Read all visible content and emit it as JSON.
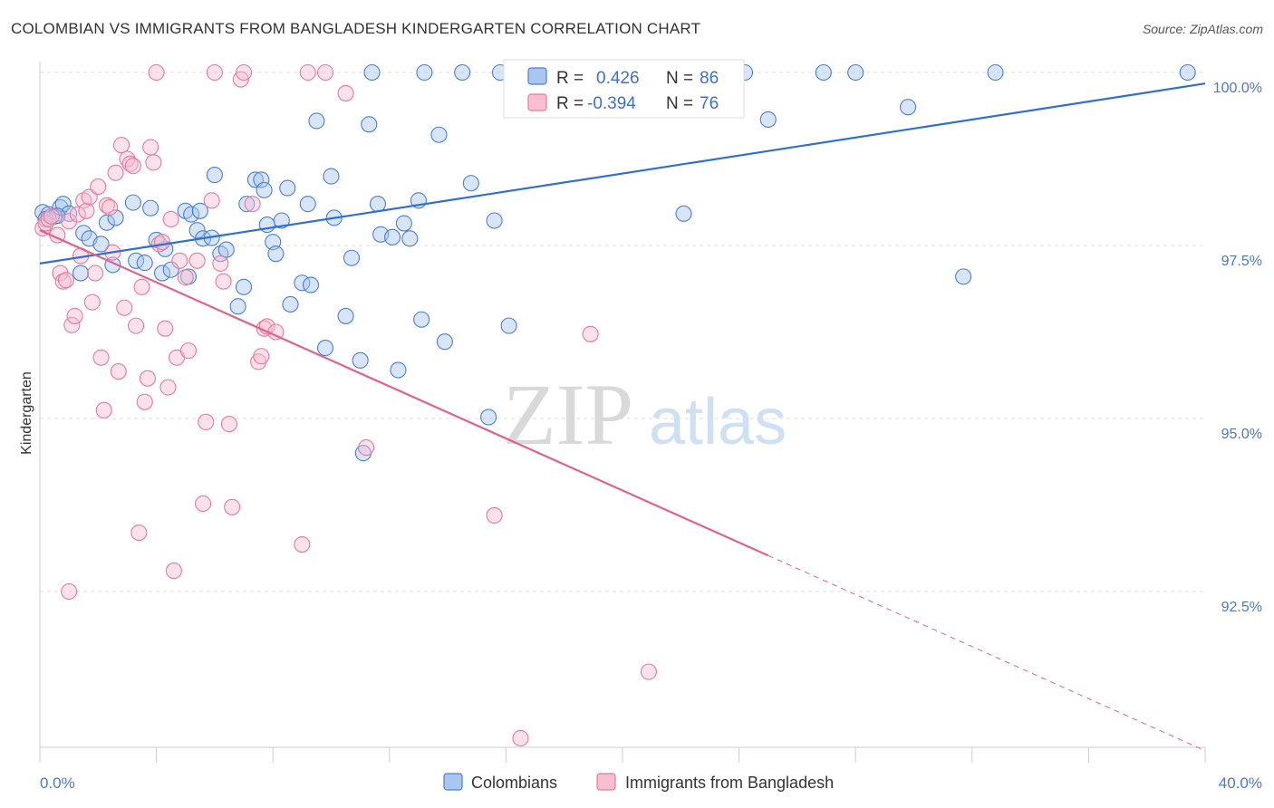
{
  "title": "COLOMBIAN VS IMMIGRANTS FROM BANGLADESH KINDERGARTEN CORRELATION CHART",
  "source": "Source: ZipAtlas.com",
  "watermark": {
    "part1": "ZIP",
    "part2": "atlas"
  },
  "colors": {
    "blue_fill": "#a8c6ee",
    "blue_stroke": "#4a7fd4",
    "blue_line": "#2f6fd0",
    "pink_fill": "#f7bfd0",
    "pink_stroke": "#e47a9c",
    "pink_line": "#e0628d",
    "grid": "#dddddd",
    "tick_text": "#4a78c9"
  },
  "legend": {
    "rows": [
      {
        "r_label": "R =",
        "r_value": "0.426",
        "n_label": "N =",
        "n_value": "86"
      },
      {
        "r_label": "R =",
        "r_value": "-0.394",
        "n_label": "N =",
        "n_value": "76"
      }
    ]
  },
  "bottom_legend": [
    "Colombians",
    "Immigrants from Bangladesh"
  ],
  "chart_data": {
    "type": "scatter",
    "title": "COLOMBIAN VS IMMIGRANTS FROM BANGLADESH KINDERGARTEN CORRELATION CHART",
    "xlabel": "",
    "ylabel": "Kindergarten",
    "xlim": [
      0,
      40
    ],
    "ylim": [
      90.2,
      100.2
    ],
    "x_tick_labels": [
      "0.0%",
      "40.0%"
    ],
    "y_ticks": [
      92.5,
      95.0,
      97.5,
      100.0
    ],
    "y_tick_labels": [
      "92.5%",
      "95.0%",
      "97.5%",
      "100.0%"
    ],
    "grid": true,
    "series": [
      {
        "name": "Colombians",
        "color": "#4a7fd4",
        "trend": {
          "x": [
            0,
            40
          ],
          "y": [
            97.24,
            99.84
          ]
        },
        "points": [
          [
            0.1,
            97.98
          ],
          [
            0.3,
            97.95
          ],
          [
            0.5,
            97.92
          ],
          [
            0.7,
            98.05
          ],
          [
            0.8,
            98.1
          ],
          [
            1.0,
            97.96
          ],
          [
            1.4,
            97.1
          ],
          [
            1.5,
            97.68
          ],
          [
            1.7,
            97.6
          ],
          [
            2.1,
            97.52
          ],
          [
            2.3,
            97.83
          ],
          [
            2.5,
            97.22
          ],
          [
            2.6,
            97.9
          ],
          [
            3.3,
            97.28
          ],
          [
            3.2,
            98.12
          ],
          [
            3.6,
            97.25
          ],
          [
            3.8,
            98.04
          ],
          [
            4.0,
            97.58
          ],
          [
            4.2,
            97.1
          ],
          [
            4.3,
            97.45
          ],
          [
            4.5,
            97.15
          ],
          [
            5.0,
            98.0
          ],
          [
            5.1,
            97.05
          ],
          [
            5.2,
            97.95
          ],
          [
            5.4,
            97.72
          ],
          [
            5.5,
            98.0
          ],
          [
            5.6,
            97.6
          ],
          [
            5.9,
            97.61
          ],
          [
            6.0,
            98.52
          ],
          [
            6.2,
            97.38
          ],
          [
            6.4,
            97.44
          ],
          [
            6.8,
            96.62
          ],
          [
            7.0,
            96.9
          ],
          [
            7.1,
            98.1
          ],
          [
            7.4,
            98.45
          ],
          [
            7.6,
            98.45
          ],
          [
            7.7,
            98.3
          ],
          [
            7.8,
            97.8
          ],
          [
            8.0,
            97.55
          ],
          [
            8.1,
            97.38
          ],
          [
            8.3,
            97.86
          ],
          [
            8.5,
            98.33
          ],
          [
            8.6,
            96.65
          ],
          [
            9.0,
            96.96
          ],
          [
            9.2,
            98.1
          ],
          [
            9.3,
            96.93
          ],
          [
            9.5,
            99.3
          ],
          [
            9.8,
            96.02
          ],
          [
            10.0,
            98.5
          ],
          [
            10.1,
            97.9
          ],
          [
            10.5,
            96.48
          ],
          [
            10.7,
            97.32
          ],
          [
            11.0,
            95.84
          ],
          [
            11.1,
            94.5
          ],
          [
            11.3,
            99.25
          ],
          [
            11.4,
            100.0
          ],
          [
            11.6,
            98.1
          ],
          [
            11.7,
            97.66
          ],
          [
            12.1,
            97.62
          ],
          [
            12.3,
            95.7
          ],
          [
            12.5,
            97.82
          ],
          [
            12.7,
            97.6
          ],
          [
            13.0,
            98.15
          ],
          [
            13.1,
            96.43
          ],
          [
            13.2,
            100.0
          ],
          [
            13.7,
            99.1
          ],
          [
            13.9,
            96.11
          ],
          [
            14.5,
            100.0
          ],
          [
            14.8,
            98.4
          ],
          [
            15.6,
            97.86
          ],
          [
            15.4,
            95.02
          ],
          [
            15.8,
            100.0
          ],
          [
            16.1,
            96.34
          ],
          [
            17.4,
            100.0
          ],
          [
            18.0,
            100.0
          ],
          [
            22.1,
            97.96
          ],
          [
            24.2,
            100.0
          ],
          [
            25.0,
            99.32
          ],
          [
            26.9,
            100.0
          ],
          [
            28.0,
            100.0
          ],
          [
            29.8,
            99.5
          ],
          [
            31.7,
            97.05
          ],
          [
            32.8,
            100.0
          ],
          [
            39.4,
            100.0
          ],
          [
            0.2,
            97.88
          ],
          [
            0.6,
            97.93
          ]
        ]
      },
      {
        "name": "Immigrants from Bangladesh",
        "color": "#e47a9c",
        "trend": {
          "x": [
            0,
            25
          ],
          "y": [
            97.72,
            93.02
          ]
        },
        "trend_dashed": {
          "x": [
            25,
            40
          ],
          "y": [
            93.02,
            90.2
          ]
        },
        "points": [
          [
            0.1,
            97.75
          ],
          [
            0.2,
            97.82
          ],
          [
            0.3,
            97.88
          ],
          [
            0.4,
            97.92
          ],
          [
            0.6,
            97.65
          ],
          [
            0.7,
            97.1
          ],
          [
            0.8,
            96.98
          ],
          [
            0.9,
            97.0
          ],
          [
            1.0,
            97.85
          ],
          [
            1.1,
            96.35
          ],
          [
            1.2,
            96.48
          ],
          [
            1.3,
            97.95
          ],
          [
            1.4,
            97.35
          ],
          [
            1.5,
            98.15
          ],
          [
            1.6,
            98.0
          ],
          [
            1.7,
            98.2
          ],
          [
            1.8,
            96.68
          ],
          [
            1.9,
            97.1
          ],
          [
            2.0,
            98.35
          ],
          [
            2.1,
            95.88
          ],
          [
            2.2,
            95.12
          ],
          [
            2.3,
            98.08
          ],
          [
            2.5,
            97.4
          ],
          [
            2.6,
            98.55
          ],
          [
            2.7,
            95.68
          ],
          [
            2.8,
            98.95
          ],
          [
            2.9,
            96.6
          ],
          [
            3.0,
            98.75
          ],
          [
            3.1,
            98.68
          ],
          [
            3.2,
            98.65
          ],
          [
            3.3,
            96.34
          ],
          [
            3.4,
            93.35
          ],
          [
            3.5,
            96.9
          ],
          [
            3.6,
            95.24
          ],
          [
            3.7,
            95.58
          ],
          [
            3.8,
            98.92
          ],
          [
            3.9,
            98.7
          ],
          [
            4.0,
            100.0
          ],
          [
            4.1,
            97.52
          ],
          [
            4.2,
            97.55
          ],
          [
            4.3,
            96.3
          ],
          [
            4.4,
            95.45
          ],
          [
            4.5,
            97.88
          ],
          [
            4.6,
            92.8
          ],
          [
            4.7,
            95.88
          ],
          [
            4.8,
            97.28
          ],
          [
            5.0,
            97.04
          ],
          [
            5.1,
            95.98
          ],
          [
            5.4,
            97.28
          ],
          [
            5.6,
            93.77
          ],
          [
            5.7,
            94.95
          ],
          [
            5.9,
            98.15
          ],
          [
            6.0,
            100.0
          ],
          [
            6.2,
            97.24
          ],
          [
            6.3,
            96.98
          ],
          [
            6.5,
            94.92
          ],
          [
            6.6,
            93.72
          ],
          [
            6.9,
            99.9
          ],
          [
            7.0,
            100.0
          ],
          [
            7.3,
            98.1
          ],
          [
            7.5,
            95.82
          ],
          [
            7.6,
            95.9
          ],
          [
            7.7,
            96.3
          ],
          [
            7.8,
            96.33
          ],
          [
            8.1,
            96.25
          ],
          [
            9.0,
            93.18
          ],
          [
            9.2,
            100.0
          ],
          [
            9.8,
            100.0
          ],
          [
            10.5,
            99.7
          ],
          [
            11.2,
            94.58
          ],
          [
            15.6,
            93.6
          ],
          [
            16.5,
            90.38
          ],
          [
            18.9,
            96.22
          ],
          [
            20.9,
            91.34
          ],
          [
            1.0,
            92.5
          ],
          [
            2.4,
            98.05
          ]
        ]
      }
    ]
  }
}
